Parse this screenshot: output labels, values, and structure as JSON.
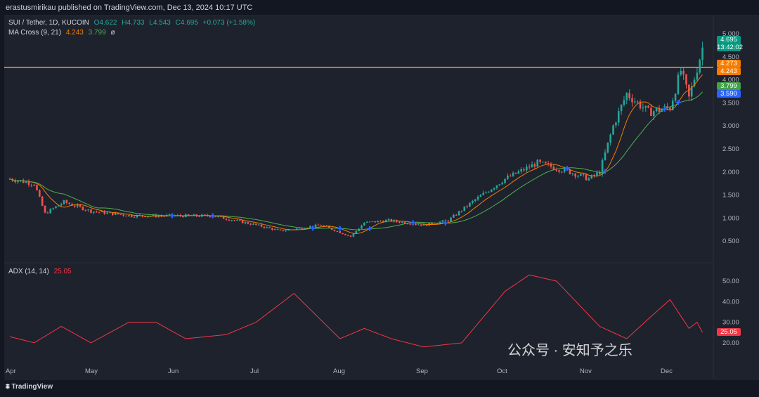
{
  "header": {
    "published": "erastusmirikau published on TradingView.com, Dec 13, 2024 10:17 UTC"
  },
  "legend": {
    "symbol": "SUI / Tether, 1D, KUCOIN",
    "o": "O4.622",
    "h": "H4.733",
    "l": "L4.543",
    "c": "C4.695",
    "change": "+0.073 (+1.58%)",
    "ma_label": "MA Cross (9, 21)",
    "ma_fast": "4.243",
    "ma_slow": "3.799",
    "ma_extra": "ø",
    "adx_label": "ADX (14, 14)",
    "adx_value": "25.05"
  },
  "tags": {
    "price": "4.695",
    "countdown": "13:42:02",
    "level": "4.273",
    "ma_fast": "4.243",
    "ma_slow": "3.799",
    "blue": "3.590",
    "adx": "25.05"
  },
  "footer": {
    "brand": "TradingView"
  },
  "watermark": "公众号 · 安知予之乐",
  "colors": {
    "up": "#26a69a",
    "down": "#ef5350",
    "ma_fast": "#f57c00",
    "ma_slow": "#4caf50",
    "level": "#f5a623",
    "adx": "#f23645",
    "cross": "#2962ff"
  },
  "chart_data": [
    {
      "type": "candlestick",
      "title": "SUI / Tether, 1D, KUCOIN",
      "y_ticks": [
        "5.000",
        "4.500",
        "4.000",
        "3.500",
        "3.000",
        "2.500",
        "2.000",
        "1.500",
        "1.000",
        "0.500"
      ],
      "ylim": [
        0.3,
        5.2
      ],
      "x_ticks": [
        "Apr",
        "May",
        "Jun",
        "Jul",
        "Aug",
        "Sep",
        "Oct",
        "Nov",
        "Dec"
      ],
      "horizontal_level": 4.273,
      "close_keypoints_day_price": [
        [
          0,
          1.85
        ],
        [
          9,
          1.75
        ],
        [
          13,
          1.1
        ],
        [
          20,
          1.35
        ],
        [
          30,
          1.15
        ],
        [
          45,
          1.05
        ],
        [
          61,
          1.05
        ],
        [
          75,
          1.05
        ],
        [
          91,
          0.85
        ],
        [
          100,
          0.72
        ],
        [
          115,
          0.85
        ],
        [
          126,
          0.6
        ],
        [
          131,
          0.9
        ],
        [
          140,
          0.95
        ],
        [
          153,
          0.85
        ],
        [
          162,
          0.95
        ],
        [
          172,
          1.4
        ],
        [
          183,
          1.85
        ],
        [
          195,
          2.2
        ],
        [
          207,
          2.0
        ],
        [
          214,
          1.85
        ],
        [
          218,
          2.0
        ],
        [
          223,
          3.0
        ],
        [
          228,
          3.7
        ],
        [
          236,
          3.3
        ],
        [
          244,
          3.4
        ],
        [
          248,
          4.2
        ],
        [
          251,
          3.6
        ],
        [
          256,
          4.695
        ]
      ]
    },
    {
      "type": "line",
      "title": "ADX (14, 14)",
      "y_ticks": [
        "50.00",
        "40.00",
        "30.00",
        "20.00"
      ],
      "ylim": [
        15,
        58
      ],
      "keypoints_day_value": [
        [
          0,
          23
        ],
        [
          9,
          20
        ],
        [
          19,
          28
        ],
        [
          30,
          20
        ],
        [
          44,
          30
        ],
        [
          54,
          30
        ],
        [
          65,
          22
        ],
        [
          80,
          24
        ],
        [
          91,
          30
        ],
        [
          105,
          44
        ],
        [
          122,
          22
        ],
        [
          131,
          27
        ],
        [
          141,
          22
        ],
        [
          153,
          18
        ],
        [
          167,
          20
        ],
        [
          183,
          45
        ],
        [
          192,
          53
        ],
        [
          202,
          50
        ],
        [
          218,
          28
        ],
        [
          228,
          22
        ],
        [
          238,
          34
        ],
        [
          244,
          41
        ],
        [
          251,
          27
        ],
        [
          254,
          30
        ],
        [
          256,
          25.05
        ]
      ]
    }
  ]
}
